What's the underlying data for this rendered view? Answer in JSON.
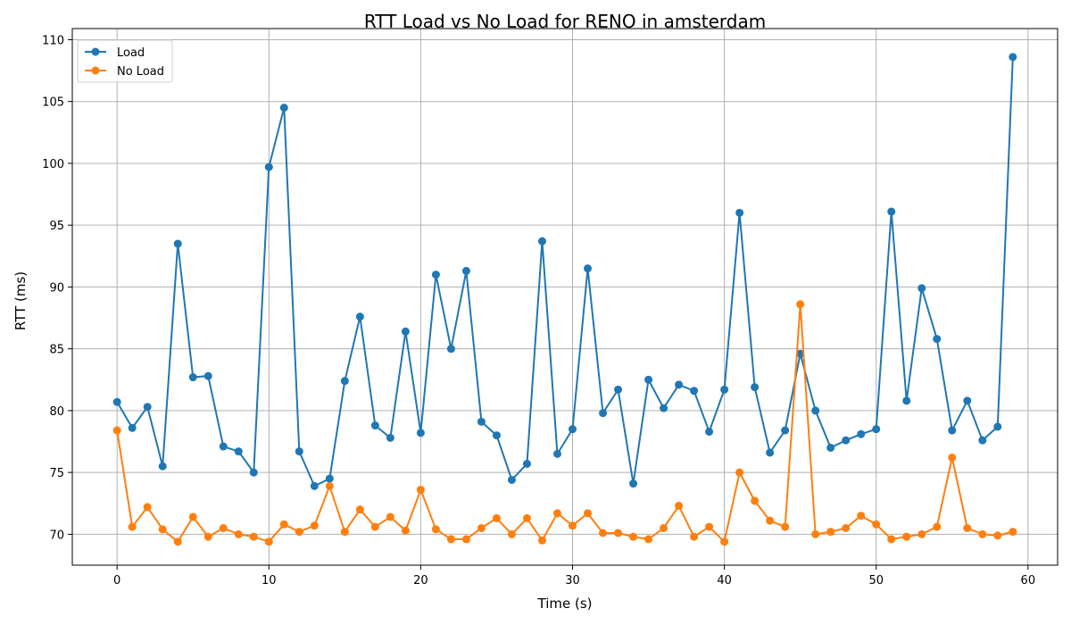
{
  "chart_data": {
    "type": "line",
    "title": "RTT Load vs No Load for RENO in amsterdam",
    "xlabel": "Time (s)",
    "ylabel": "RTT (ms)",
    "xlim": [
      -2.95,
      61.95
    ],
    "ylim": [
      67.5,
      110.9
    ],
    "xticks": [
      0,
      10,
      20,
      30,
      40,
      50,
      60
    ],
    "yticks": [
      70,
      75,
      80,
      85,
      90,
      95,
      100,
      105,
      110
    ],
    "grid": true,
    "legend_position": "top-left",
    "series": [
      {
        "name": "Load",
        "color": "#1f77b4",
        "x": [
          0,
          1,
          2,
          3,
          4,
          5,
          6,
          7,
          8,
          9,
          10,
          11,
          12,
          13,
          14,
          15,
          16,
          17,
          18,
          19,
          20,
          21,
          22,
          23,
          24,
          25,
          26,
          27,
          28,
          29,
          30,
          31,
          32,
          33,
          34,
          35,
          36,
          37,
          38,
          39,
          40,
          41,
          42,
          43,
          44,
          45,
          46,
          47,
          48,
          49,
          50,
          51,
          52,
          53,
          54,
          55,
          56,
          57,
          58,
          59
        ],
        "values": [
          80.7,
          78.6,
          80.3,
          75.5,
          93.5,
          82.7,
          82.8,
          77.1,
          76.7,
          75.0,
          99.7,
          104.5,
          76.7,
          73.9,
          74.5,
          82.4,
          87.6,
          78.8,
          77.8,
          86.4,
          78.2,
          91.0,
          85.0,
          91.3,
          79.1,
          78.0,
          74.4,
          75.7,
          93.7,
          76.5,
          78.5,
          91.5,
          79.8,
          81.7,
          74.1,
          82.5,
          80.2,
          82.1,
          81.6,
          78.3,
          81.7,
          96.0,
          81.9,
          76.6,
          78.4,
          84.6,
          80.0,
          77.0,
          77.6,
          78.1,
          78.5,
          96.1,
          80.8,
          89.9,
          85.8,
          78.4,
          80.8,
          77.6,
          78.7,
          108.6
        ]
      },
      {
        "name": "No Load",
        "color": "#ff7f0e",
        "x": [
          0,
          1,
          2,
          3,
          4,
          5,
          6,
          7,
          8,
          9,
          10,
          11,
          12,
          13,
          14,
          15,
          16,
          17,
          18,
          19,
          20,
          21,
          22,
          23,
          24,
          25,
          26,
          27,
          28,
          29,
          30,
          31,
          32,
          33,
          34,
          35,
          36,
          37,
          38,
          39,
          40,
          41,
          42,
          43,
          44,
          45,
          46,
          47,
          48,
          49,
          50,
          51,
          52,
          53,
          54,
          55,
          56,
          57,
          58,
          59
        ],
        "values": [
          78.4,
          70.6,
          72.2,
          70.4,
          69.4,
          71.4,
          69.8,
          70.5,
          70.0,
          69.8,
          69.4,
          70.8,
          70.2,
          70.7,
          73.9,
          70.2,
          72.0,
          70.6,
          71.4,
          70.3,
          73.6,
          70.4,
          69.6,
          69.6,
          70.5,
          71.3,
          70.0,
          71.3,
          69.5,
          71.7,
          70.7,
          71.7,
          70.1,
          70.1,
          69.8,
          69.6,
          70.5,
          72.3,
          69.8,
          70.6,
          69.4,
          75.0,
          72.7,
          71.1,
          70.6,
          88.6,
          70.0,
          70.2,
          70.5,
          71.5,
          70.8,
          69.6,
          69.8,
          70.0,
          70.6,
          76.2,
          70.5,
          70.0,
          69.9,
          70.2
        ]
      }
    ]
  }
}
